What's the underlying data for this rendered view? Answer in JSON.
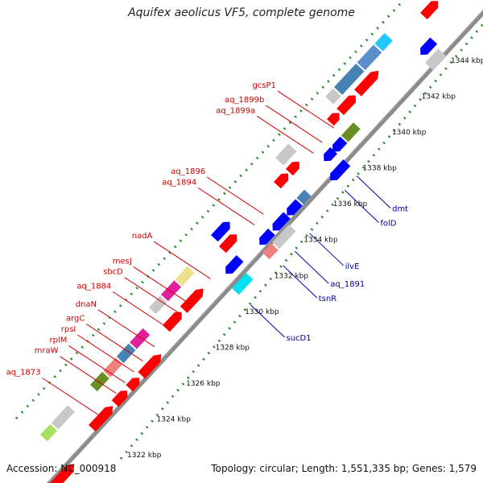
{
  "title": "Aquifex aeolicus VF5, complete genome",
  "accession": "Accession: NC_000918",
  "summary": "Topology: circular; Length: 1,551,335 bp; Genes: 1,579",
  "scale": {
    "unit": "kbp",
    "ticks": [
      1322,
      1324,
      1326,
      1328,
      1330,
      1332,
      1334,
      1336,
      1338,
      1340,
      1342,
      1344
    ]
  },
  "colors": {
    "red_label": "#d00000",
    "blue_label": "#0000a0",
    "backbone": "#8c8c8c",
    "dots": "#228b22"
  },
  "genes_minus_labels": [
    {
      "name": "aq_1873",
      "kb": 1324.0
    },
    {
      "name": "mraW",
      "kb": 1325.2
    },
    {
      "name": "rplM",
      "kb": 1325.8
    },
    {
      "name": "rpsI",
      "kb": 1326.4
    },
    {
      "name": "argC",
      "kb": 1327.0
    },
    {
      "name": "dnaN",
      "kb": 1327.8
    },
    {
      "name": "aq_1884",
      "kb": 1328.8
    },
    {
      "name": "sbcD",
      "kb": 1329.6
    },
    {
      "name": "mesJ",
      "kb": 1330.2
    },
    {
      "name": "nadA",
      "kb": 1331.6
    },
    {
      "name": "aq_1894",
      "kb": 1334.6
    },
    {
      "name": "aq_1896",
      "kb": 1335.2
    },
    {
      "name": "aq_1899a",
      "kb": 1338.6
    },
    {
      "name": "aq_1899b",
      "kb": 1339.2
    },
    {
      "name": "gcsP1",
      "kb": 1340.0
    }
  ],
  "genes_plus_labels": [
    {
      "name": "sucD1",
      "kb": 1330.4
    },
    {
      "name": "tsnR",
      "kb": 1332.6
    },
    {
      "name": "aq_1891",
      "kb": 1333.4
    },
    {
      "name": "ilvE",
      "kb": 1334.4
    },
    {
      "name": "folD",
      "kb": 1336.8
    },
    {
      "name": "dmt",
      "kb": 1337.6
    }
  ]
}
